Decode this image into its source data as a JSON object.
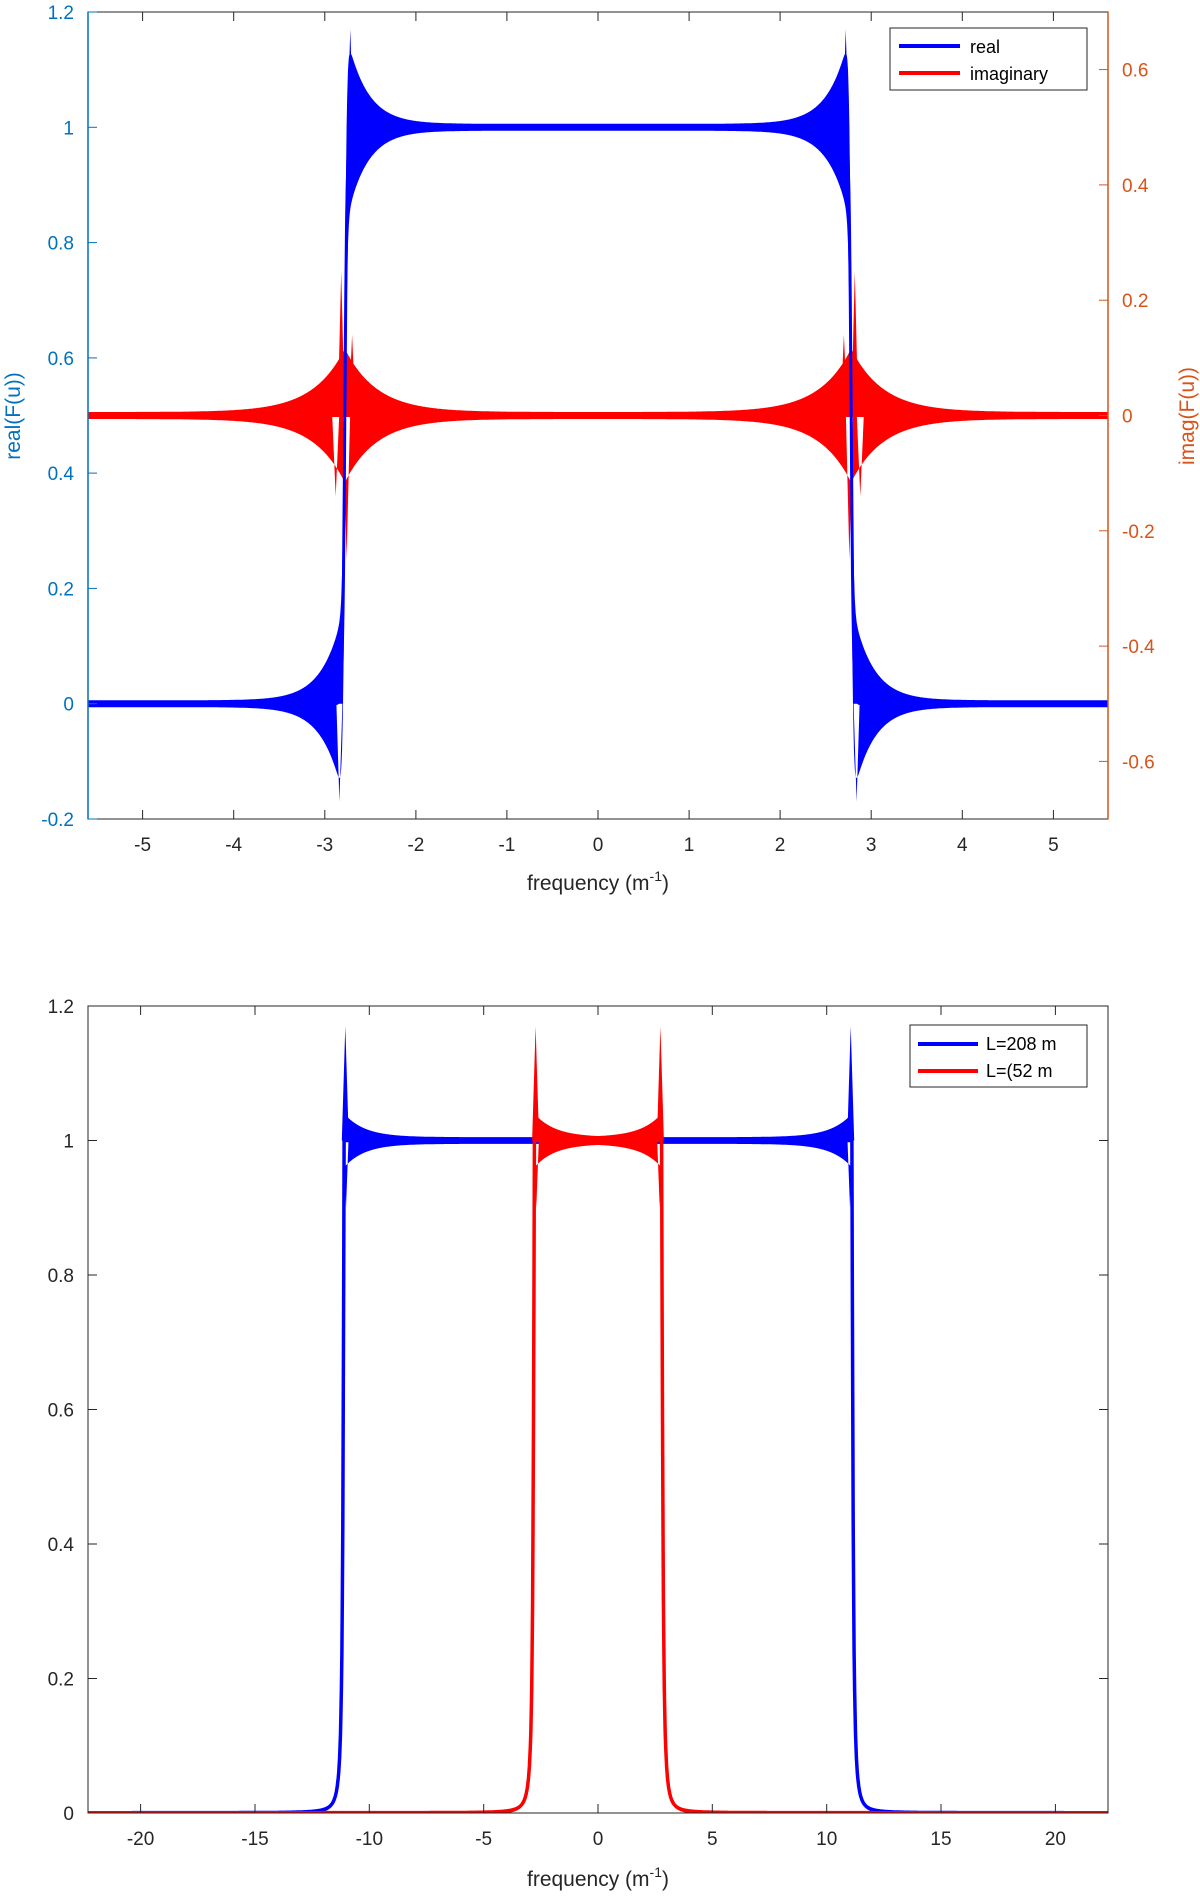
{
  "chart_data": [
    {
      "type": "line",
      "title": "",
      "xlabel": "frequency (m",
      "xlabel_sup": "-1",
      "xlabel_close": ")",
      "ylabel": "real(F(u))",
      "ylabel_right": "imag(F(u))",
      "xlim": [
        -5.6,
        5.6
      ],
      "ylim": [
        -0.2,
        1.2
      ],
      "ylim_right": [
        -0.7,
        0.7
      ],
      "xticks": [
        "-5",
        "-4",
        "-3",
        "-2",
        "-1",
        "0",
        "1",
        "2",
        "3",
        "4",
        "5"
      ],
      "xtick_values": [
        -5,
        -4,
        -3,
        -2,
        -1,
        0,
        1,
        2,
        3,
        4,
        5
      ],
      "yticks": [
        "-0.2",
        "0",
        "0.2",
        "0.4",
        "0.6",
        "0.8",
        "1",
        "1.2"
      ],
      "ytick_values": [
        -0.2,
        0,
        0.2,
        0.4,
        0.6,
        0.8,
        1,
        1.2
      ],
      "yticks_right": [
        "-0.6",
        "-0.4",
        "-0.2",
        "0",
        "0.2",
        "0.4",
        "0.6"
      ],
      "ytick_values_right": [
        -0.6,
        -0.4,
        -0.2,
        0,
        0.2,
        0.4,
        0.6
      ],
      "grid": false,
      "legend_position": "top-right",
      "left_axis_color": "#0072BD",
      "right_axis_color": "#D95319",
      "series": [
        {
          "name": "real",
          "color": "#0000FF",
          "axis": "left",
          "cutoff": 2.78,
          "overshoot": 0.17,
          "undershoot": -0.17
        },
        {
          "name": "imaginary",
          "color": "#FF0000",
          "axis": "right",
          "cutoff": 2.78,
          "peak": 0.25,
          "trough": -0.25
        }
      ]
    },
    {
      "type": "line",
      "title": "",
      "xlabel": "frequency (m",
      "xlabel_sup": "-1",
      "xlabel_close": ")",
      "ylabel": "",
      "xlim": [
        -22.3,
        22.3
      ],
      "ylim": [
        0,
        1.2
      ],
      "xticks": [
        "-20",
        "-15",
        "-10",
        "-5",
        "0",
        "5",
        "10",
        "15",
        "20"
      ],
      "xtick_values": [
        -20,
        -15,
        -10,
        -5,
        0,
        5,
        10,
        15,
        20
      ],
      "yticks": [
        "0",
        "0.2",
        "0.4",
        "0.6",
        "0.8",
        "1",
        "1.2"
      ],
      "ytick_values": [
        0,
        0.2,
        0.4,
        0.6,
        0.8,
        1,
        1.2
      ],
      "grid": false,
      "legend_position": "top-right",
      "series": [
        {
          "name": "L=208 m",
          "color": "#0000FF",
          "cutoff": 11.1,
          "peak": 1.17
        },
        {
          "name": "L=(52 m",
          "color": "#FF0000",
          "cutoff": 2.78,
          "peak": 1.17
        }
      ]
    }
  ]
}
